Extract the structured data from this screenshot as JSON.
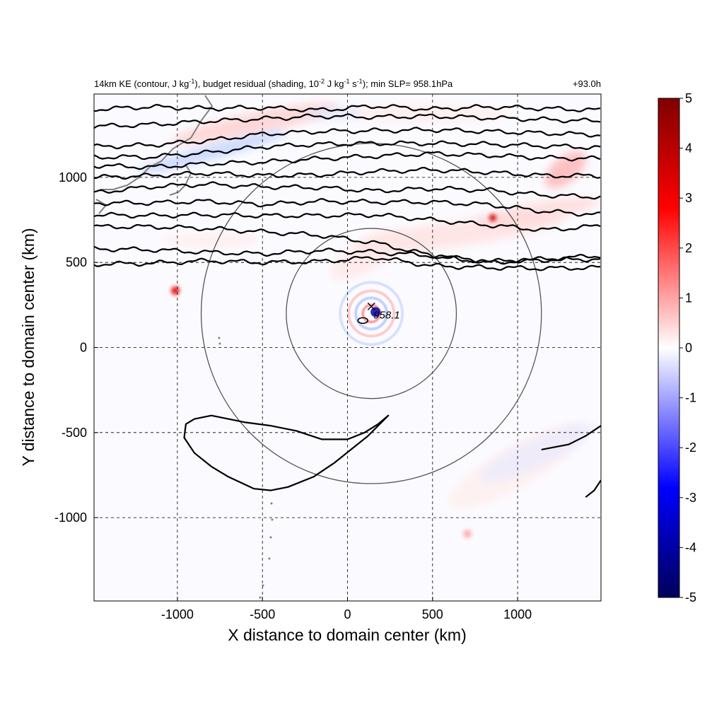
{
  "chart_data": {
    "type": "heatmap",
    "title": {
      "p1": "14km KE (contour, J kg",
      "p1_sup": "-1",
      "p2": "), budget residual (shading, 10",
      "p2_sup": "-2",
      "p3": " J kg",
      "p3_sup": "-1",
      "p4": " s",
      "p4_sup": "-1",
      "p5": "); min SLP= 958.1hPa"
    },
    "time_label": "+93.0h",
    "xlabel": "X distance to domain center (km)",
    "ylabel": "Y distance to domain center (km)",
    "xlim": [
      -1490,
      1490
    ],
    "ylim": [
      -1490,
      1490
    ],
    "x_ticks": [
      -1000,
      -500,
      0,
      500,
      1000
    ],
    "y_ticks": [
      -1000,
      -500,
      0,
      500,
      1000
    ],
    "x_tick_labels": [
      "-1000",
      "-500",
      "0",
      "500",
      "1000"
    ],
    "y_tick_labels": [
      "-1000",
      "-500",
      "0",
      "500",
      "1000"
    ],
    "grid": "dashed",
    "colorbar": {
      "min": -5,
      "max": 5,
      "ticks": [
        5,
        4,
        3,
        2,
        1,
        0,
        -1,
        -2,
        -3,
        -4,
        -5
      ],
      "tick_labels": [
        "5",
        "4",
        "3",
        "2",
        "1",
        "0",
        "-1",
        "-2",
        "-3",
        "-4",
        "-5"
      ],
      "colors": [
        "#00005a",
        "#0000ff",
        "#ffffff",
        "#ff0000",
        "#800000"
      ]
    },
    "storm_center": {
      "x": 140,
      "y": 200,
      "label": "958.1"
    },
    "range_rings_km": [
      500,
      1000
    ],
    "ke_contours": [
      {
        "y": [
          1400,
          1415,
          1405,
          1410,
          1395,
          1420,
          1400,
          1415,
          1405,
          1395
        ]
      },
      {
        "y": [
          1300,
          1310,
          1330,
          1345,
          1360,
          1355,
          1360,
          1350,
          1340,
          1330
        ]
      },
      {
        "y": [
          1180,
          1190,
          1215,
          1255,
          1270,
          1275,
          1280,
          1270,
          1260,
          1250
        ]
      },
      {
        "y": [
          1120,
          1120,
          1145,
          1180,
          1195,
          1200,
          1200,
          1195,
          1185,
          1175
        ]
      },
      {
        "y": [
          1070,
          1060,
          1080,
          1090,
          1110,
          1125,
          1140,
          1130,
          1115,
          1110
        ]
      },
      {
        "y": [
          1000,
          1010,
          1025,
          1010,
          1015,
          1035,
          1045,
          1030,
          1010,
          1010
        ]
      },
      {
        "y": [
          910,
          945,
          960,
          945,
          940,
          920,
          935,
          925,
          895,
          885
        ]
      },
      {
        "y": [
          850,
          850,
          860,
          840,
          860,
          855,
          855,
          840,
          800,
          780
        ]
      },
      {
        "y": [
          780,
          775,
          780,
          775,
          775,
          780,
          750,
          720,
          690,
          715
        ]
      },
      {
        "y": [
          710,
          710,
          700,
          680,
          660,
          615,
          540,
          505,
          520,
          540
        ]
      },
      {
        "y": [
          580,
          575,
          560,
          550,
          570,
          560,
          540,
          500,
          515,
          520
        ]
      },
      {
        "y": [
          490,
          495,
          510,
          500,
          505,
          530,
          480,
          470,
          465,
          470
        ]
      }
    ],
    "ke_closed_contour": {
      "x": [
        -950,
        -900,
        -800,
        -700,
        -600,
        -450,
        -300,
        -150,
        0,
        100,
        180,
        240,
        120,
        20,
        -80,
        -200,
        -350,
        -450,
        -550,
        -700,
        -800,
        -900,
        -960,
        -950
      ],
      "y": [
        -450,
        -420,
        -400,
        -420,
        -440,
        -460,
        -490,
        -540,
        -540,
        -500,
        -450,
        -400,
        -520,
        -600,
        -680,
        -760,
        -820,
        -840,
        -830,
        -760,
        -700,
        -620,
        -530,
        -450
      ]
    },
    "ke_edge_contours": [
      {
        "x": [
          1140,
          1300,
          1400,
          1490
        ],
        "y": [
          -600,
          -570,
          -520,
          -460
        ]
      },
      {
        "x": [
          1400,
          1450,
          1490
        ],
        "y": [
          -880,
          -840,
          -780
        ]
      }
    ]
  }
}
